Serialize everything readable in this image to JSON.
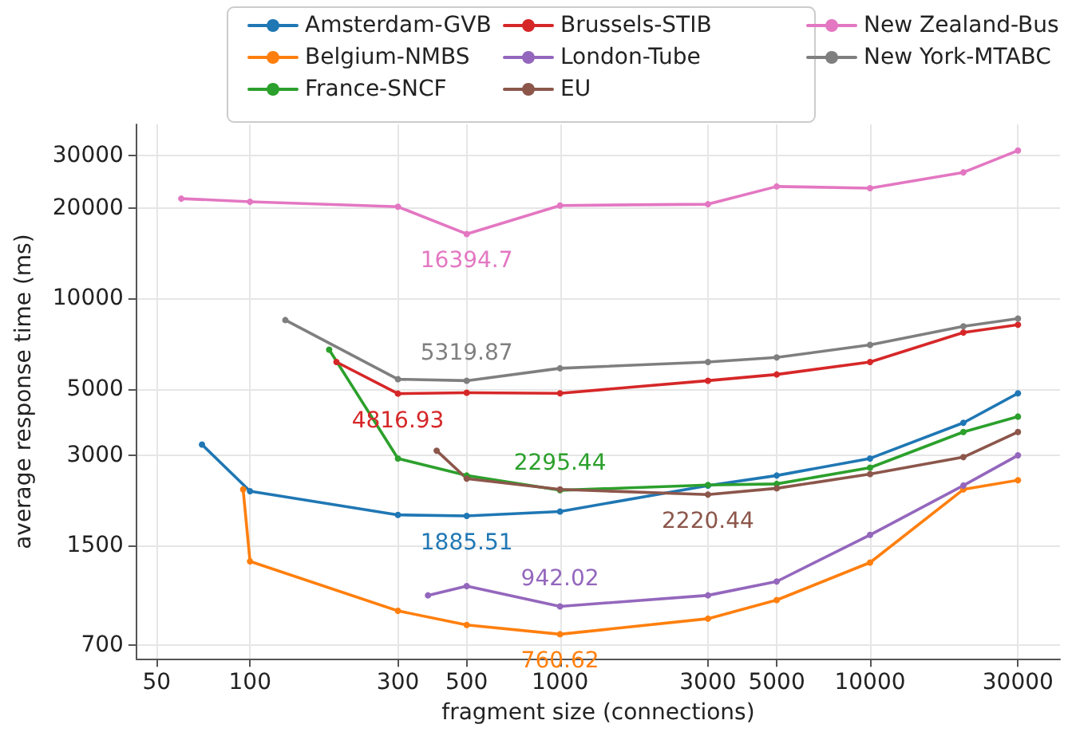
{
  "chart_data": {
    "type": "line",
    "xlabel": "fragment size (connections)",
    "ylabel": "average response time (ms)",
    "log": "xy",
    "grid": true,
    "legend": "top",
    "marker": "circle",
    "line_style": "solid",
    "xlim": [
      43,
      41000
    ],
    "xticks": [
      50,
      100,
      300,
      500,
      1000,
      3000,
      5000,
      10000,
      30000
    ],
    "ylim": [
      630,
      38000
    ],
    "yticks": [
      700,
      1500,
      3000,
      5000,
      10000,
      20000,
      30000
    ],
    "series": [
      {
        "name": "Amsterdam-GVB",
        "color": "#1f77b4",
        "x": [
          70,
          100,
          300,
          500,
          1000,
          3000,
          5000,
          10000,
          20000,
          30000
        ],
        "values": [
          3260,
          2280,
          1900,
          1885.51,
          1950,
          2380,
          2570,
          2930,
          3850,
          4830
        ],
        "value_labels": [
          null,
          null,
          null,
          "1885.51",
          null,
          null,
          null,
          null,
          null,
          null
        ]
      },
      {
        "name": "Belgium-NMBS",
        "color": "#ff7f0e",
        "x": [
          95,
          100,
          300,
          500,
          1000,
          3000,
          5000,
          10000,
          20000,
          30000
        ],
        "values": [
          2310,
          1330,
          910,
          817,
          760.62,
          857,
          989,
          1318,
          2310,
          2480
        ],
        "value_labels": [
          null,
          null,
          null,
          null,
          "760.62",
          null,
          null,
          null,
          null,
          null
        ]
      },
      {
        "name": "France-SNCF",
        "color": "#2ca02c",
        "x": [
          180,
          300,
          500,
          1000,
          3000,
          5000,
          10000,
          20000,
          30000
        ],
        "values": [
          6750,
          2930,
          2570,
          2295.44,
          2390,
          2410,
          2730,
          3590,
          4040
        ],
        "value_labels": [
          null,
          null,
          null,
          "2295.44",
          null,
          null,
          null,
          null,
          null
        ]
      },
      {
        "name": "Brussels-STIB",
        "color": "#d62728",
        "x": [
          190,
          300,
          500,
          1000,
          3000,
          5000,
          10000,
          20000,
          30000
        ],
        "values": [
          6140,
          4816.93,
          4850,
          4830,
          5320,
          5580,
          6140,
          7700,
          8170
        ],
        "value_labels": [
          null,
          "4816.93",
          null,
          null,
          null,
          null,
          null,
          null,
          null
        ]
      },
      {
        "name": "London-Tube",
        "color": "#9467bd",
        "x": [
          375,
          500,
          1000,
          3000,
          5000,
          10000,
          20000,
          30000
        ],
        "values": [
          1025,
          1100,
          942.02,
          1025,
          1140,
          1630,
          2380,
          3000
        ],
        "value_labels": [
          null,
          null,
          "942.02",
          null,
          null,
          null,
          null,
          null
        ]
      },
      {
        "name": "EU",
        "color": "#8c564b",
        "x": [
          400,
          500,
          1000,
          3000,
          5000,
          10000,
          20000,
          30000
        ],
        "values": [
          3110,
          2510,
          2310,
          2220.44,
          2330,
          2600,
          2960,
          3590
        ],
        "value_labels": [
          null,
          null,
          null,
          "2220.44",
          null,
          null,
          null,
          null
        ]
      },
      {
        "name": "New Zealand-Bus",
        "color": "#e377c2",
        "x": [
          60,
          100,
          300,
          500,
          1000,
          3000,
          5000,
          10000,
          20000,
          30000
        ],
        "values": [
          21500,
          21000,
          20200,
          16394.7,
          20400,
          20600,
          23600,
          23300,
          26300,
          31100
        ],
        "value_labels": [
          null,
          null,
          null,
          "16394.7",
          null,
          null,
          null,
          null,
          null,
          null
        ]
      },
      {
        "name": "New York-MTABC",
        "color": "#7f7f7f",
        "x": [
          130,
          300,
          500,
          1000,
          3000,
          5000,
          10000,
          20000,
          30000
        ],
        "values": [
          8470,
          5380,
          5319.87,
          5850,
          6140,
          6360,
          7000,
          8070,
          8570
        ],
        "value_labels": [
          null,
          null,
          "5319.87",
          null,
          null,
          null,
          null,
          null,
          null
        ]
      }
    ]
  }
}
